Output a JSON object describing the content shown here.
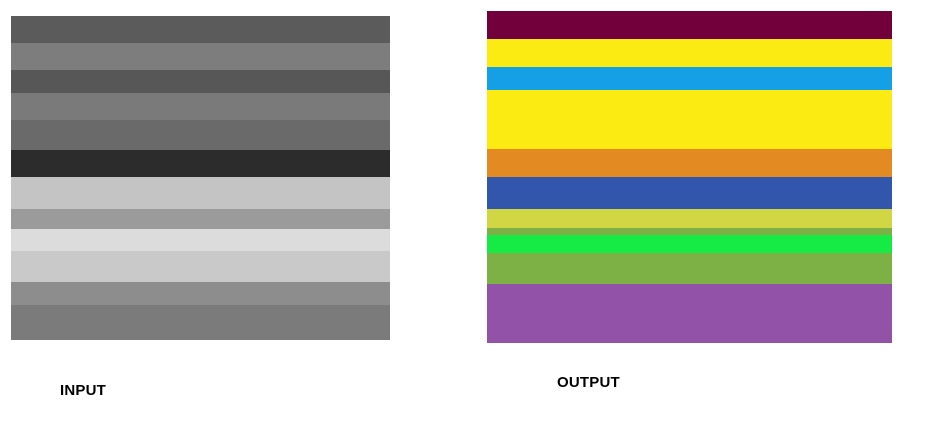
{
  "input": {
    "label": "INPUT",
    "stripes": [
      {
        "color": "#5b5b5b",
        "weight": 27
      },
      {
        "color": "#7d7d7d",
        "weight": 27
      },
      {
        "color": "#575757",
        "weight": 23
      },
      {
        "color": "#7a7a7a",
        "weight": 27
      },
      {
        "color": "#6a6a6a",
        "weight": 30
      },
      {
        "color": "#2c2c2c",
        "weight": 27
      },
      {
        "color": "#c4c4c4",
        "weight": 32
      },
      {
        "color": "#9b9b9b",
        "weight": 20
      },
      {
        "color": "#dcdcdc",
        "weight": 22
      },
      {
        "color": "#c9c9c9",
        "weight": 31
      },
      {
        "color": "#8d8d8d",
        "weight": 23
      },
      {
        "color": "#7b7b7b",
        "weight": 35
      }
    ]
  },
  "output": {
    "label": "OUTPUT",
    "stripes": [
      {
        "color": "#72003a",
        "weight": 28
      },
      {
        "color": "#fceb12",
        "weight": 28
      },
      {
        "color": "#159fe5",
        "weight": 23
      },
      {
        "color": "#fceb12",
        "weight": 59
      },
      {
        "color": "#e38b22",
        "weight": 28
      },
      {
        "color": "#3156ab",
        "weight": 32
      },
      {
        "color": "#d1d744",
        "weight": 19
      },
      {
        "color": "#7db045",
        "weight": 7
      },
      {
        "color": "#15ea45",
        "weight": 18
      },
      {
        "color": "#7db045",
        "weight": 31
      },
      {
        "color": "#9252a8",
        "weight": 59
      }
    ]
  }
}
